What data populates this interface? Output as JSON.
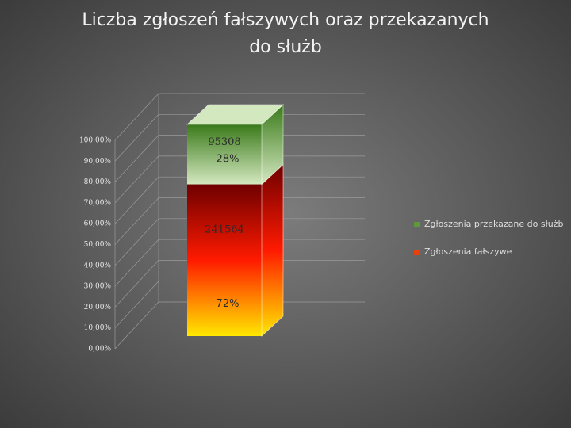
{
  "chart_data": {
    "type": "stacked_percent_bar",
    "title_lines": [
      "Liczba zgłoszeń fałszywych oraz przekazanych",
      "do służb"
    ],
    "categories": [
      null
    ],
    "series": [
      {
        "name": "Zgłoszenia fałszywe",
        "color": "#e8400a",
        "gradient": [
          "#6e0000",
          "#ff1a00",
          "#ffe800"
        ],
        "values": [
          71.71
        ],
        "value_labels": [
          "72%"
        ],
        "counts": [
          241564
        ]
      },
      {
        "name": "Zgłoszenia przekazane do służb",
        "color": "#5f9a3a",
        "gradient": [
          "#3a7a1a",
          "#d4e8c0"
        ],
        "values": [
          28.29
        ],
        "value_labels": [
          "28%"
        ],
        "counts": [
          95308
        ]
      }
    ],
    "ylim": [
      0,
      100
    ],
    "yticks": [
      {
        "value": 0,
        "label": "0,00%"
      },
      {
        "value": 10,
        "label": "10,00%"
      },
      {
        "value": 20,
        "label": "20,00%"
      },
      {
        "value": 30,
        "label": "30,00%"
      },
      {
        "value": 40,
        "label": "40,00%"
      },
      {
        "value": 50,
        "label": "50,00%"
      },
      {
        "value": 60,
        "label": "60,00%"
      },
      {
        "value": 70,
        "label": "70,00%"
      },
      {
        "value": 80,
        "label": "80,00%"
      },
      {
        "value": 90,
        "label": "90,00%"
      },
      {
        "value": 100,
        "label": "100,00%"
      }
    ],
    "grid": true,
    "legend": "right"
  }
}
